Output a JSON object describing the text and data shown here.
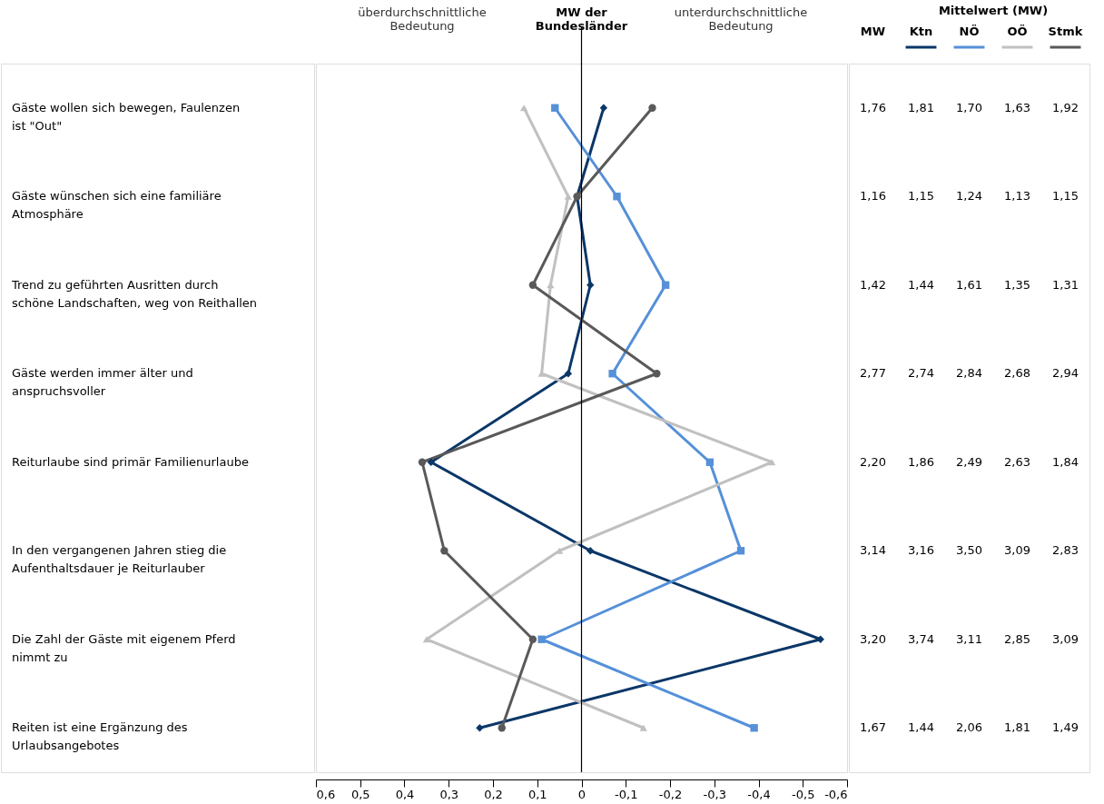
{
  "chart_data": {
    "type": "line",
    "orientation": "horizontal",
    "legend_title": "Mittelwert (MW)",
    "legend": "top right",
    "grid": false,
    "line_style": "solid",
    "categories": [
      "Gäste wollen sich bewegen, Faulenzen ist \"Out\"",
      "Gäste wünschen sich eine familiäre Atmosphäre",
      "Trend zu geführten Ausritten durch schöne Landschaften, weg von Reithallen",
      "Gäste werden immer älter und anspruchsvoller",
      "Reiturlaube sind primär Familienurlaube",
      "In den vergangenen Jahren stieg die Aufenthaltsdauer je Reiturlauber",
      "Die Zahl der Gäste mit eigenem Pferd nimmt zu",
      "Reiten ist eine Ergänzung des Urlaubsangebotes"
    ],
    "xlim": [
      0.6,
      -0.6
    ],
    "xticks": [
      {
        "value": 0.6,
        "label": "0,6"
      },
      {
        "value": 0.5,
        "label": "0,5"
      },
      {
        "value": 0.4,
        "label": "0,4"
      },
      {
        "value": 0.3,
        "label": "0,3"
      },
      {
        "value": 0.2,
        "label": "0,2"
      },
      {
        "value": 0.1,
        "label": "0,1"
      },
      0,
      {
        "value": -0.1,
        "label": "-0,1"
      },
      {
        "value": -0.2,
        "label": "-0,2"
      },
      {
        "value": -0.3,
        "label": "-0,3"
      },
      {
        "value": -0.4,
        "label": "-0,4"
      },
      {
        "value": -0.5,
        "label": "-0,5"
      },
      {
        "value": -0.6,
        "label": "-0,6"
      }
    ],
    "series": [
      {
        "name": "Ktn",
        "color": "#0b3768",
        "marker": "diamond",
        "values": [
          -0.05,
          0.01,
          -0.02,
          0.03,
          0.34,
          -0.02,
          -0.54,
          0.23
        ]
      },
      {
        "name": "NÖ",
        "color": "#5590d8",
        "marker": "square",
        "values": [
          0.06,
          -0.08,
          -0.19,
          -0.07,
          -0.29,
          -0.36,
          0.09,
          -0.39
        ]
      },
      {
        "name": "OÖ",
        "color": "#c0c0c0",
        "marker": "triangle",
        "values": [
          0.13,
          0.03,
          0.07,
          0.09,
          -0.43,
          0.05,
          0.35,
          -0.14
        ]
      },
      {
        "name": "Stmk",
        "color": "#595959",
        "marker": "circle",
        "values": [
          -0.16,
          0.01,
          0.11,
          -0.17,
          0.36,
          0.31,
          0.11,
          0.18
        ]
      }
    ],
    "ref_lines": [
      {
        "axis": "x",
        "value": 0,
        "label": "MW der Bundesländer",
        "color": "#000000"
      }
    ],
    "annotations": [
      "überdurchschnittliche Bedeutung",
      "unterdurchschnittliche Bedeutung",
      "MW",
      "1,76",
      "1,81",
      "1,70",
      "1,63",
      "1,92",
      "1,16",
      "1,15",
      "1,24",
      "1,13",
      "1,15",
      "1,42",
      "1,44",
      "1,61",
      "1,35",
      "1,31",
      "2,77",
      "2,74",
      "2,84",
      "2,68",
      "2,94",
      "2,20",
      "1,86",
      "2,49",
      "2,63",
      "1,84",
      "3,14",
      "3,16",
      "3,50",
      "3,09",
      "2,83",
      "3,20",
      "3,74",
      "3,11",
      "2,85",
      "3,09",
      "1,67",
      "1,44",
      "2,06",
      "1,81",
      "1,49"
    ]
  }
}
